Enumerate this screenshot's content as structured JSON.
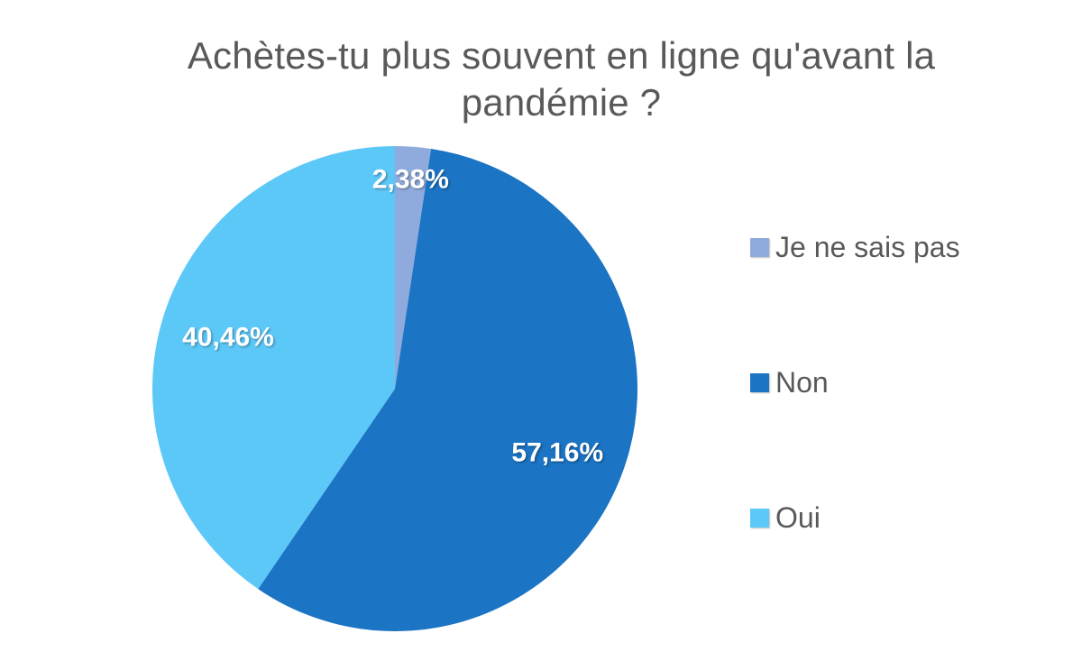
{
  "page": {
    "background": "#ffffff"
  },
  "chart_data": {
    "type": "pie",
    "title": "Achètes-tu plus souvent en ligne qu'avant la pandémie ?",
    "title_color": "#595959",
    "legend_position": "right",
    "legend_text_color": "#595959",
    "start_angle_deg": 0,
    "direction": "clockwise",
    "data_label_color": "#ffffff",
    "slices": [
      {
        "label": "Je ne sais pas",
        "value": 2.38,
        "display": "2,38%",
        "color": "#8FAADC"
      },
      {
        "label": "Non",
        "value": 57.16,
        "display": "57,16%",
        "color": "#1B74C4"
      },
      {
        "label": "Oui",
        "value": 40.46,
        "display": "40,46%",
        "color": "#5CC8F8"
      }
    ]
  }
}
